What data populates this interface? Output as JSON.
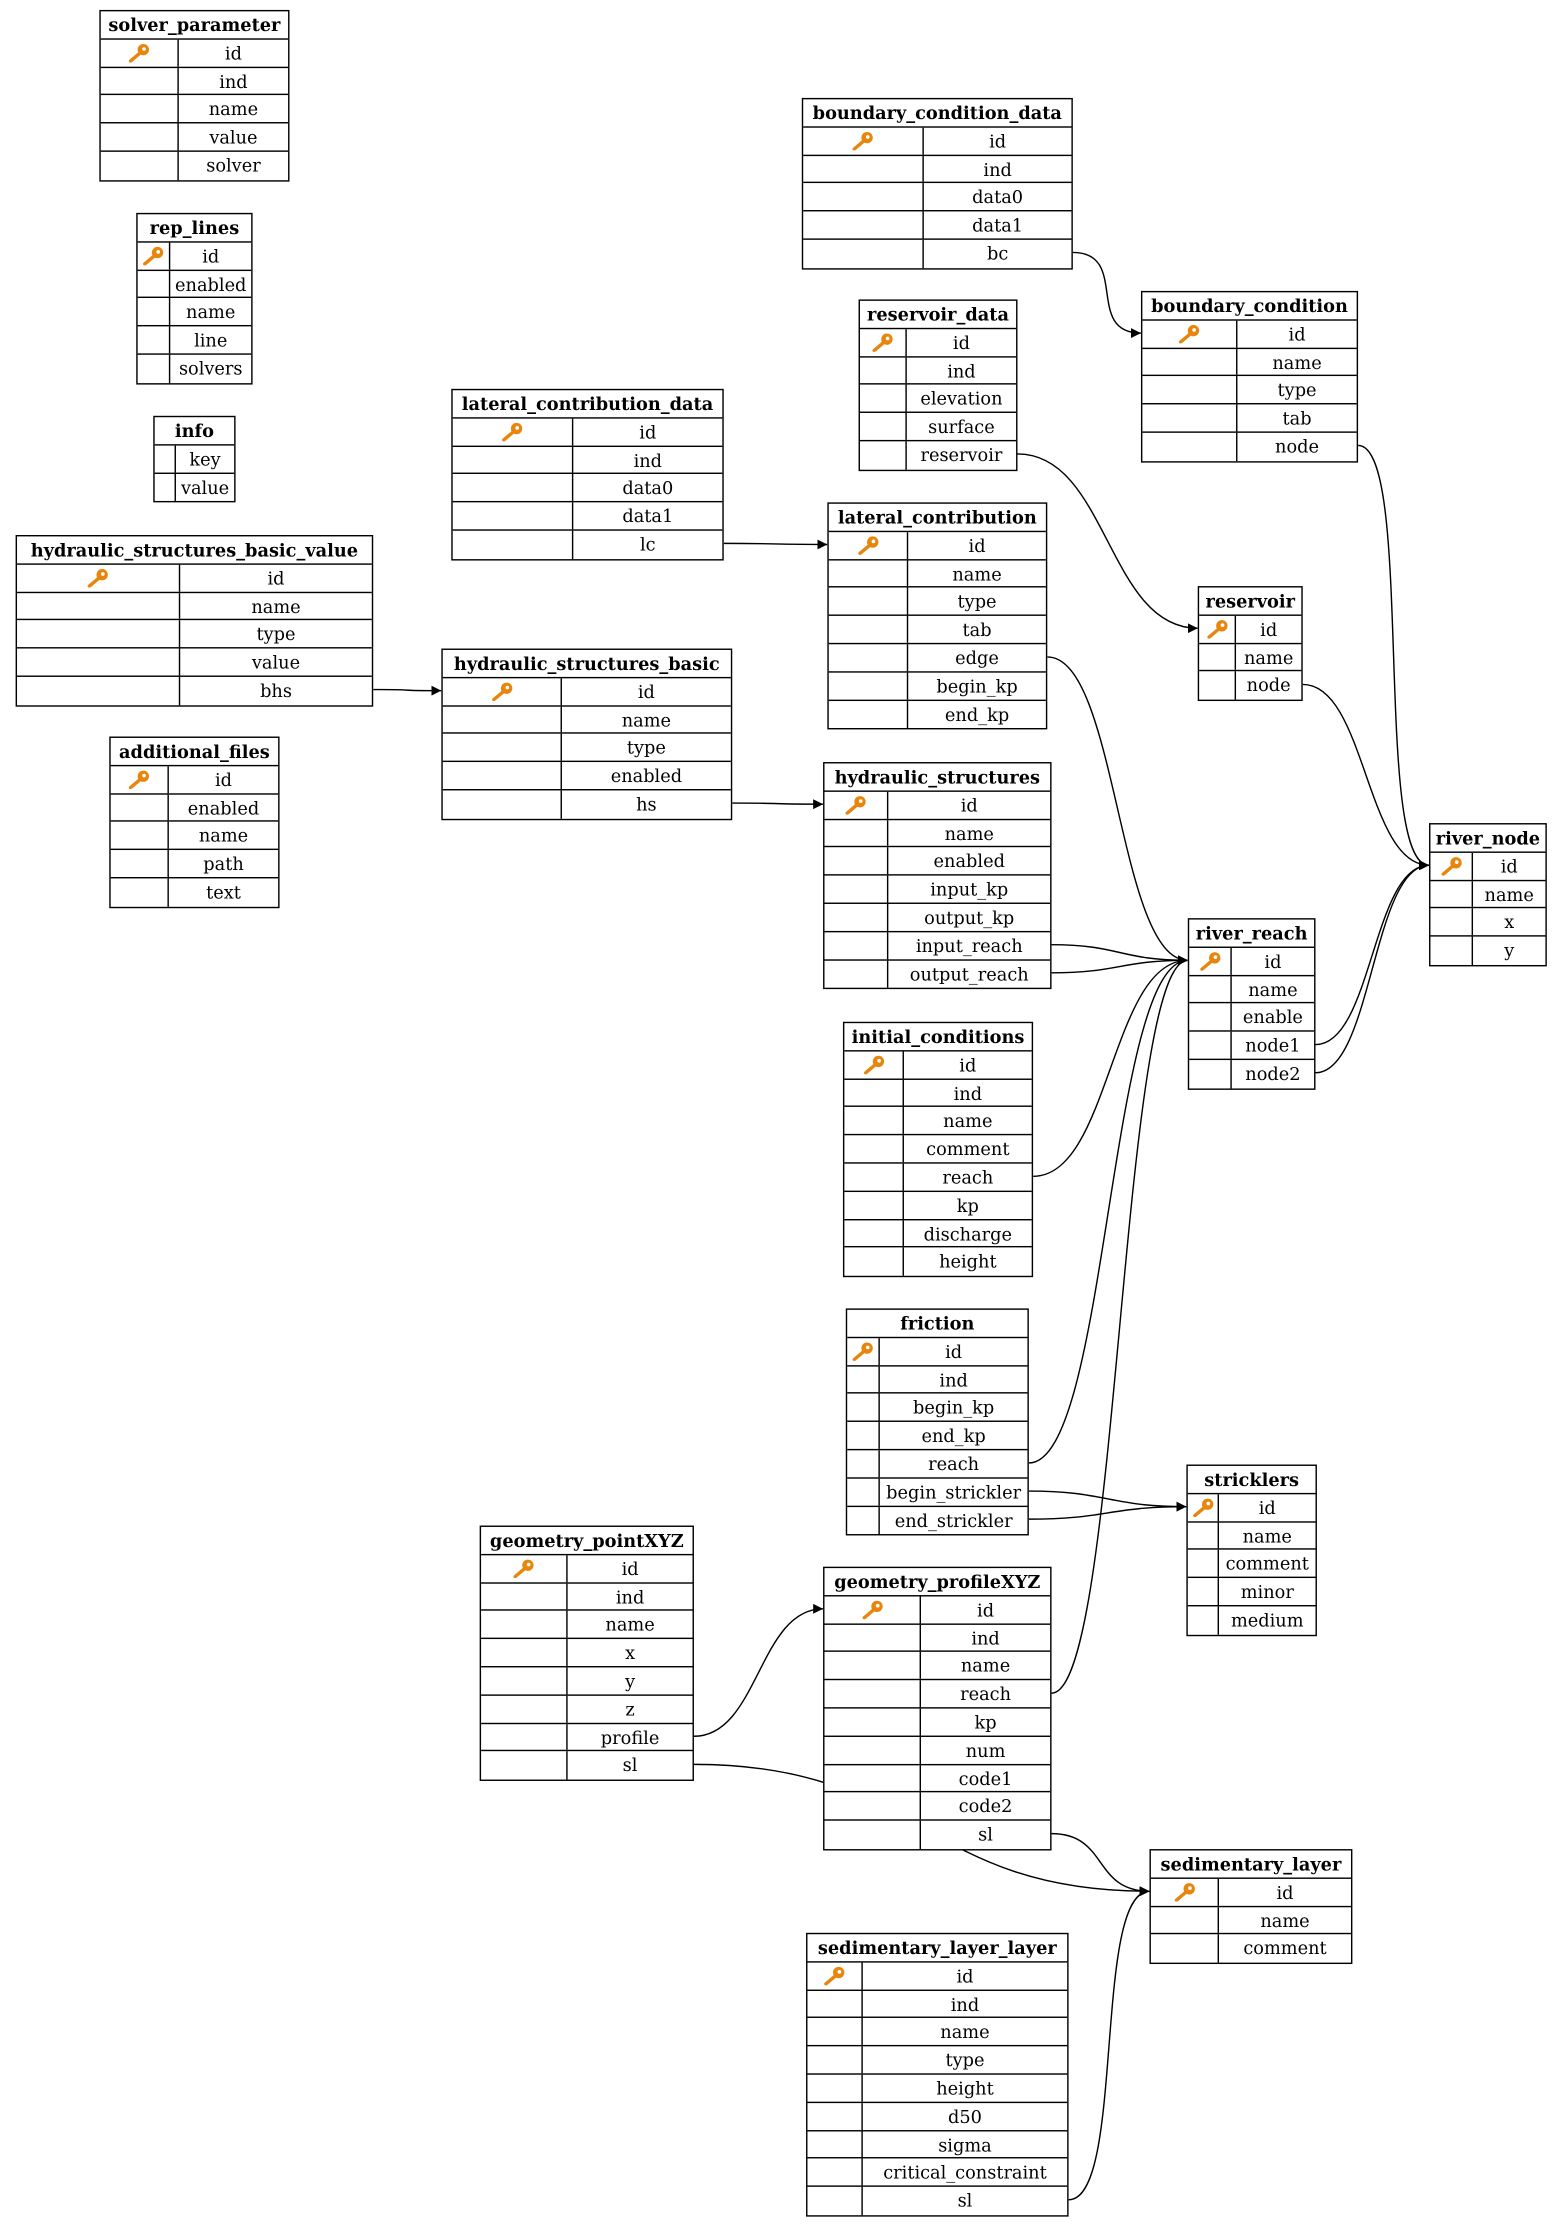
{
  "colors": {
    "key_icon": "#e8850c",
    "line": "#000000"
  },
  "tables": [
    {
      "name": "solver_parameter",
      "columns": [
        "id",
        "ind",
        "name",
        "value",
        "solver"
      ],
      "primary_key": "id"
    },
    {
      "name": "rep_lines",
      "columns": [
        "id",
        "enabled",
        "name",
        "line",
        "solvers"
      ],
      "primary_key": "id"
    },
    {
      "name": "info",
      "columns": [
        "key",
        "value"
      ],
      "primary_key": null
    },
    {
      "name": "hydraulic_structures_basic_value",
      "columns": [
        "id",
        "name",
        "type",
        "value",
        "bhs"
      ],
      "primary_key": "id"
    },
    {
      "name": "additional_files",
      "columns": [
        "id",
        "enabled",
        "name",
        "path",
        "text"
      ],
      "primary_key": "id"
    },
    {
      "name": "lateral_contribution_data",
      "columns": [
        "id",
        "ind",
        "data0",
        "data1",
        "lc"
      ],
      "primary_key": "id"
    },
    {
      "name": "hydraulic_structures_basic",
      "columns": [
        "id",
        "name",
        "type",
        "enabled",
        "hs"
      ],
      "primary_key": "id"
    },
    {
      "name": "boundary_condition_data",
      "columns": [
        "id",
        "ind",
        "data0",
        "data1",
        "bc"
      ],
      "primary_key": "id"
    },
    {
      "name": "reservoir_data",
      "columns": [
        "id",
        "ind",
        "elevation",
        "surface",
        "reservoir"
      ],
      "primary_key": "id"
    },
    {
      "name": "lateral_contribution",
      "columns": [
        "id",
        "name",
        "type",
        "tab",
        "edge",
        "begin_kp",
        "end_kp"
      ],
      "primary_key": "id"
    },
    {
      "name": "hydraulic_structures",
      "columns": [
        "id",
        "name",
        "enabled",
        "input_kp",
        "output_kp",
        "input_reach",
        "output_reach"
      ],
      "primary_key": "id"
    },
    {
      "name": "initial_conditions",
      "columns": [
        "id",
        "ind",
        "name",
        "comment",
        "reach",
        "kp",
        "discharge",
        "height"
      ],
      "primary_key": "id"
    },
    {
      "name": "friction",
      "columns": [
        "id",
        "ind",
        "begin_kp",
        "end_kp",
        "reach",
        "begin_strickler",
        "end_strickler"
      ],
      "primary_key": "id"
    },
    {
      "name": "geometry_pointXYZ",
      "columns": [
        "id",
        "ind",
        "name",
        "x",
        "y",
        "z",
        "profile",
        "sl"
      ],
      "primary_key": "id"
    },
    {
      "name": "geometry_profileXYZ",
      "columns": [
        "id",
        "ind",
        "name",
        "reach",
        "kp",
        "num",
        "code1",
        "code2",
        "sl"
      ],
      "primary_key": "id"
    },
    {
      "name": "sedimentary_layer_layer",
      "columns": [
        "id",
        "ind",
        "name",
        "type",
        "height",
        "d50",
        "sigma",
        "critical_constraint",
        "sl"
      ],
      "primary_key": "id"
    },
    {
      "name": "boundary_condition",
      "columns": [
        "id",
        "name",
        "type",
        "tab",
        "node"
      ],
      "primary_key": "id"
    },
    {
      "name": "reservoir",
      "columns": [
        "id",
        "name",
        "node"
      ],
      "primary_key": "id"
    },
    {
      "name": "river_reach",
      "columns": [
        "id",
        "name",
        "enable",
        "node1",
        "node2"
      ],
      "primary_key": "id"
    },
    {
      "name": "stricklers",
      "columns": [
        "id",
        "name",
        "comment",
        "minor",
        "medium"
      ],
      "primary_key": "id"
    },
    {
      "name": "sedimentary_layer",
      "columns": [
        "id",
        "name",
        "comment"
      ],
      "primary_key": "id"
    },
    {
      "name": "river_node",
      "columns": [
        "id",
        "name",
        "x",
        "y"
      ],
      "primary_key": "id"
    }
  ],
  "relations": [
    {
      "from": "boundary_condition_data",
      "column": "bc",
      "to": "boundary_condition"
    },
    {
      "from": "boundary_condition",
      "column": "node",
      "to": "river_node"
    },
    {
      "from": "reservoir_data",
      "column": "reservoir",
      "to": "reservoir"
    },
    {
      "from": "reservoir",
      "column": "node",
      "to": "river_node"
    },
    {
      "from": "lateral_contribution_data",
      "column": "lc",
      "to": "lateral_contribution"
    },
    {
      "from": "lateral_contribution",
      "column": "edge",
      "to": "river_reach"
    },
    {
      "from": "hydraulic_structures_basic_value",
      "column": "bhs",
      "to": "hydraulic_structures_basic"
    },
    {
      "from": "hydraulic_structures_basic",
      "column": "hs",
      "to": "hydraulic_structures"
    },
    {
      "from": "hydraulic_structures",
      "column": "input_reach",
      "to": "river_reach"
    },
    {
      "from": "hydraulic_structures",
      "column": "output_reach",
      "to": "river_reach"
    },
    {
      "from": "initial_conditions",
      "column": "reach",
      "to": "river_reach"
    },
    {
      "from": "friction",
      "column": "reach",
      "to": "river_reach"
    },
    {
      "from": "friction",
      "column": "begin_strickler",
      "to": "stricklers"
    },
    {
      "from": "friction",
      "column": "end_strickler",
      "to": "stricklers"
    },
    {
      "from": "geometry_pointXYZ",
      "column": "profile",
      "to": "geometry_profileXYZ"
    },
    {
      "from": "geometry_pointXYZ",
      "column": "sl",
      "to": "sedimentary_layer"
    },
    {
      "from": "geometry_profileXYZ",
      "column": "reach",
      "to": "river_reach"
    },
    {
      "from": "geometry_profileXYZ",
      "column": "sl",
      "to": "sedimentary_layer"
    },
    {
      "from": "sedimentary_layer_layer",
      "column": "sl",
      "to": "sedimentary_layer"
    },
    {
      "from": "river_reach",
      "column": "node1",
      "to": "river_node"
    },
    {
      "from": "river_reach",
      "column": "node2",
      "to": "river_node"
    }
  ]
}
